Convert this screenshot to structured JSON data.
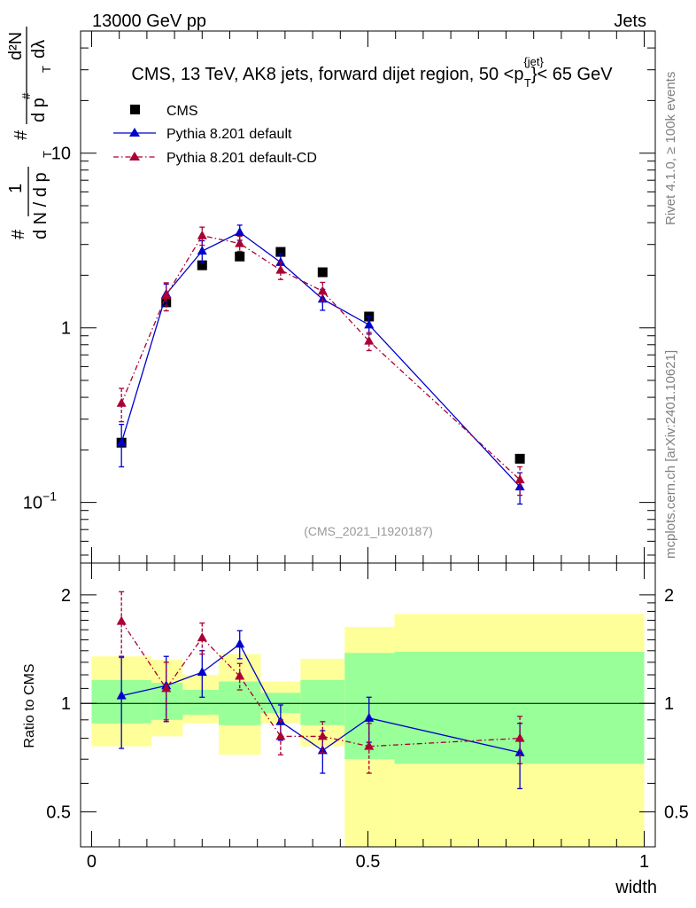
{
  "header": {
    "energy_label": "13000 GeV pp",
    "category_label": "Jets",
    "title_prefix": "CMS, 13 TeV, AK8 jets, forward dijet region, 50 <p",
    "title_sup": "{jet}",
    "title_sub": "T",
    "title_suffix": "}< 65 GeV",
    "analysis_id": "(CMS_2021_I1920187)"
  },
  "side_labels": {
    "rivet": "Rivet 4.1.0, ≥ 100k events",
    "mcplots": "mcplots.cern.ch [arXiv:2401.10621]"
  },
  "y_axis_label": {
    "hash1": "#",
    "one": "1",
    "dn_dpt": "d N / d p",
    "sub_t": "T",
    "hash2": "#",
    "d2n": "d²N",
    "dpt_dl": "d p",
    "dl_suffix": "dλ",
    "hash3": "#"
  },
  "colors": {
    "cms": "#000000",
    "pythia_default": "#0000cc",
    "pythia_cd": "#aa0033",
    "band_inner": "#99ff99",
    "band_outer": "#ffff99"
  },
  "chart_data": [
    {
      "type": "scatter",
      "scale": "log",
      "ylim": [
        0.045,
        50
      ],
      "xlim": [
        -0.02,
        1.02
      ],
      "y_ticks": [
        {
          "value": 0.1,
          "label": "10",
          "sup": "−1"
        },
        {
          "value": 1,
          "label": "1",
          "sup": ""
        },
        {
          "value": 10,
          "label": "10",
          "sup": ""
        }
      ],
      "legend": {
        "placement": "top-left",
        "entries": [
          "CMS",
          "Pythia 8.201 default",
          "Pythia 8.201 default-CD"
        ]
      },
      "series": [
        {
          "name": "CMS",
          "style": "square",
          "x": [
            0.054,
            0.135,
            0.2,
            0.268,
            0.342,
            0.418,
            0.502,
            0.775
          ],
          "y": [
            0.22,
            1.4,
            2.28,
            2.56,
            2.72,
            2.08,
            1.16,
            0.178
          ],
          "err": [
            0,
            0,
            0,
            0,
            0,
            0,
            0,
            0
          ]
        },
        {
          "name": "Pythia 8.201 default",
          "style": "line",
          "x": [
            0.054,
            0.135,
            0.2,
            0.268,
            0.342,
            0.418,
            0.502,
            0.775
          ],
          "y": [
            0.22,
            1.56,
            2.75,
            3.52,
            2.37,
            1.46,
            1.04,
            0.123
          ],
          "err": [
            0.06,
            0.22,
            0.4,
            0.35,
            0.28,
            0.2,
            0.12,
            0.025
          ]
        },
        {
          "name": "Pythia 8.201 default-CD",
          "style": "dashdot",
          "x": [
            0.054,
            0.135,
            0.2,
            0.268,
            0.342,
            0.418,
            0.502,
            0.775
          ],
          "y": [
            0.37,
            1.53,
            3.37,
            3.04,
            2.14,
            1.62,
            0.84,
            0.135
          ],
          "err": [
            0.08,
            0.28,
            0.4,
            0.3,
            0.25,
            0.2,
            0.1,
            0.025
          ]
        }
      ]
    },
    {
      "type": "scatter",
      "scale": "log",
      "ylabel": "Ratio to CMS",
      "xlabel": "width",
      "xlim": [
        -0.02,
        1.02
      ],
      "ylim": [
        0.4,
        2.45
      ],
      "reference_line": 1,
      "y_ticks": [
        {
          "value": 0.5,
          "label": "0.5"
        },
        {
          "value": 1,
          "label": "1"
        },
        {
          "value": 2,
          "label": "2"
        }
      ],
      "x_ticks": [
        {
          "value": 0,
          "label": "0"
        },
        {
          "value": 0.5,
          "label": "0.5"
        },
        {
          "value": 1,
          "label": "1"
        }
      ],
      "bands": [
        {
          "x0": 0.0,
          "x1": 0.108,
          "inner": [
            0.88,
            1.16
          ],
          "outer": [
            0.76,
            1.35
          ]
        },
        {
          "x0": 0.108,
          "x1": 0.165,
          "inner": [
            0.9,
            1.14
          ],
          "outer": [
            0.81,
            1.32
          ]
        },
        {
          "x0": 0.165,
          "x1": 0.23,
          "inner": [
            0.93,
            1.09
          ],
          "outer": [
            0.88,
            1.2
          ]
        },
        {
          "x0": 0.23,
          "x1": 0.306,
          "inner": [
            0.87,
            1.15
          ],
          "outer": [
            0.72,
            1.37
          ]
        },
        {
          "x0": 0.306,
          "x1": 0.378,
          "inner": [
            0.94,
            1.07
          ],
          "outer": [
            0.88,
            1.15
          ]
        },
        {
          "x0": 0.378,
          "x1": 0.458,
          "inner": [
            0.87,
            1.16
          ],
          "outer": [
            0.76,
            1.33
          ]
        },
        {
          "x0": 0.458,
          "x1": 0.548,
          "inner": [
            0.7,
            1.38
          ],
          "outer": [
            0.38,
            1.63
          ]
        },
        {
          "x0": 0.548,
          "x1": 1.0,
          "inner": [
            0.68,
            1.39
          ],
          "outer": [
            0.38,
            1.77
          ]
        }
      ],
      "series": [
        {
          "name": "Pythia 8.201 default",
          "style": "line",
          "x": [
            0.054,
            0.135,
            0.2,
            0.268,
            0.342,
            0.418,
            0.502,
            0.775
          ],
          "y": [
            1.05,
            1.12,
            1.22,
            1.46,
            0.89,
            0.74,
            0.91,
            0.73
          ],
          "err": [
            0.3,
            0.23,
            0.18,
            0.13,
            0.1,
            0.1,
            0.13,
            0.15
          ]
        },
        {
          "name": "Pythia 8.201 default-CD",
          "style": "dashdot",
          "x": [
            0.054,
            0.135,
            0.2,
            0.268,
            0.342,
            0.418,
            0.502,
            0.775
          ],
          "y": [
            1.69,
            1.1,
            1.52,
            1.19,
            0.81,
            0.81,
            0.76,
            0.8
          ],
          "err": [
            0.35,
            0.2,
            0.15,
            0.1,
            0.09,
            0.08,
            0.12,
            0.12
          ]
        }
      ]
    }
  ]
}
